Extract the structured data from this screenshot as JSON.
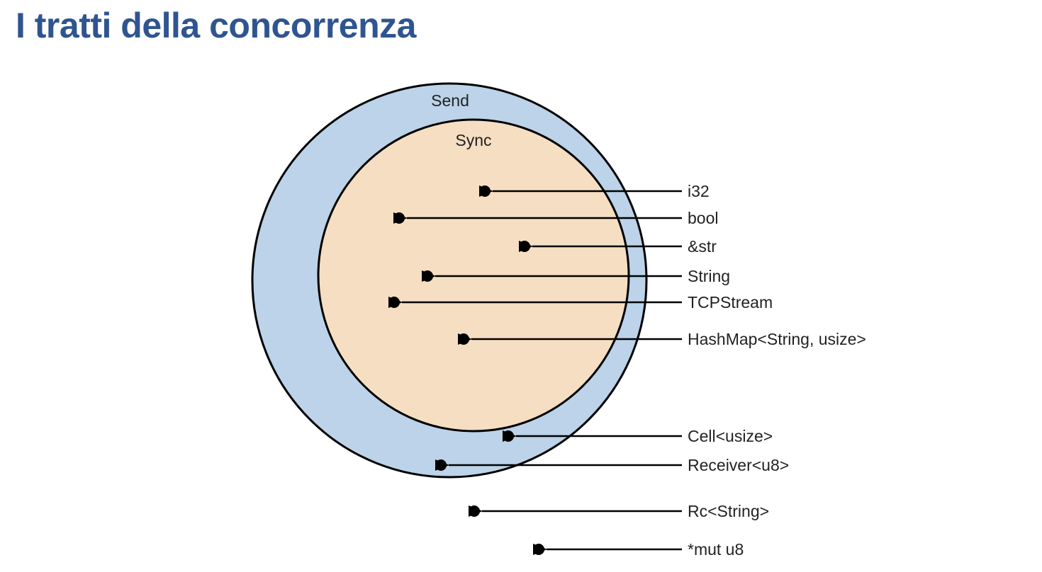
{
  "slide": {
    "title": "I tratti della concorrenza",
    "title_color": "#2f5590"
  },
  "diagram": {
    "outer_set": {
      "label": "Send",
      "fill": "#bcd3e9"
    },
    "inner_set": {
      "label": "Sync",
      "fill": "#f6dec2"
    },
    "stroke_color": "#000000",
    "types": [
      {
        "label": "i32",
        "membership": "Send, Sync"
      },
      {
        "label": "bool",
        "membership": "Send, Sync"
      },
      {
        "label": "&str",
        "membership": "Send, Sync"
      },
      {
        "label": "String",
        "membership": "Send, Sync"
      },
      {
        "label": "TCPStream",
        "membership": "Send, Sync"
      },
      {
        "label": "HashMap<String, usize>",
        "membership": "Send, Sync"
      },
      {
        "label": "Cell<usize>",
        "membership": "Send"
      },
      {
        "label": "Receiver<u8>",
        "membership": "Send"
      },
      {
        "label": "Rc<String>",
        "membership": "none"
      },
      {
        "label": "*mut u8",
        "membership": "none"
      }
    ]
  }
}
